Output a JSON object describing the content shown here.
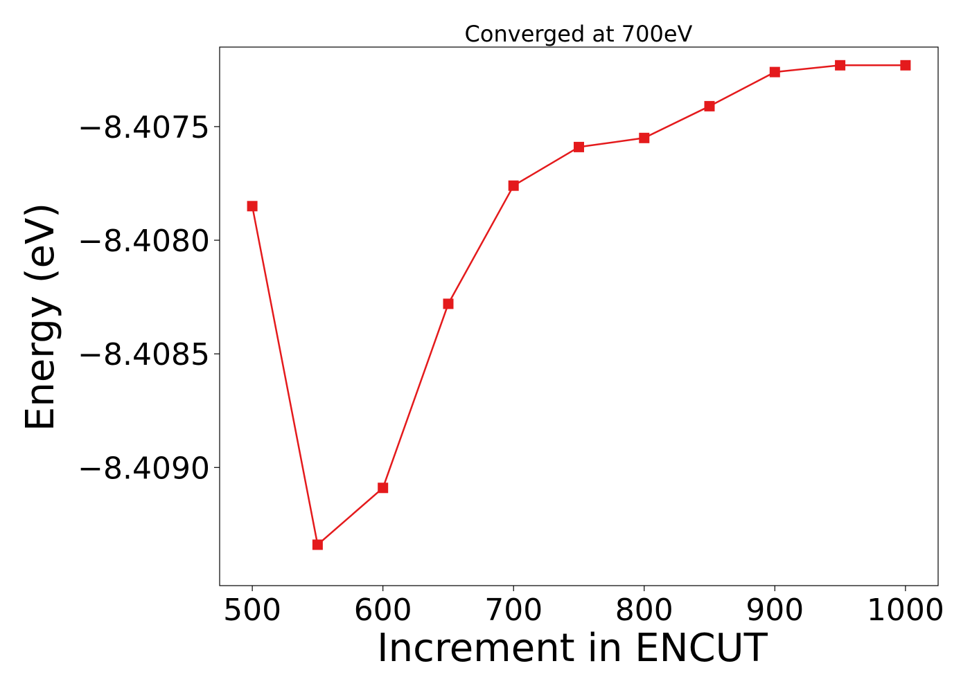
{
  "chart_data": {
    "type": "line",
    "title": "Converged at 700eV",
    "xlabel": "Increment in ENCUT",
    "ylabel": "Energy (eV)",
    "x": [
      500,
      550,
      600,
      650,
      700,
      750,
      800,
      850,
      900,
      950,
      1000
    ],
    "series": [
      {
        "values": [
          -8.40785,
          -8.40934,
          -8.40909,
          -8.40828,
          -8.40776,
          -8.40759,
          -8.40755,
          -8.40741,
          -8.40726,
          -8.40723,
          -8.40723
        ],
        "color": "#e41a1c",
        "marker": "square"
      }
    ],
    "xticks": [
      500,
      600,
      700,
      800,
      900,
      1000
    ],
    "xtick_labels": [
      "500",
      "600",
      "700",
      "800",
      "900",
      "1000"
    ],
    "yticks": [
      -8.409,
      -8.4085,
      -8.408,
      -8.4075
    ],
    "ytick_labels": [
      "−8.4090",
      "−8.4085",
      "−8.4080",
      "−8.4075"
    ],
    "xlim": [
      475,
      1025
    ],
    "ylim": [
      -8.40952,
      -8.40715
    ],
    "grid": false,
    "legend": "none"
  }
}
